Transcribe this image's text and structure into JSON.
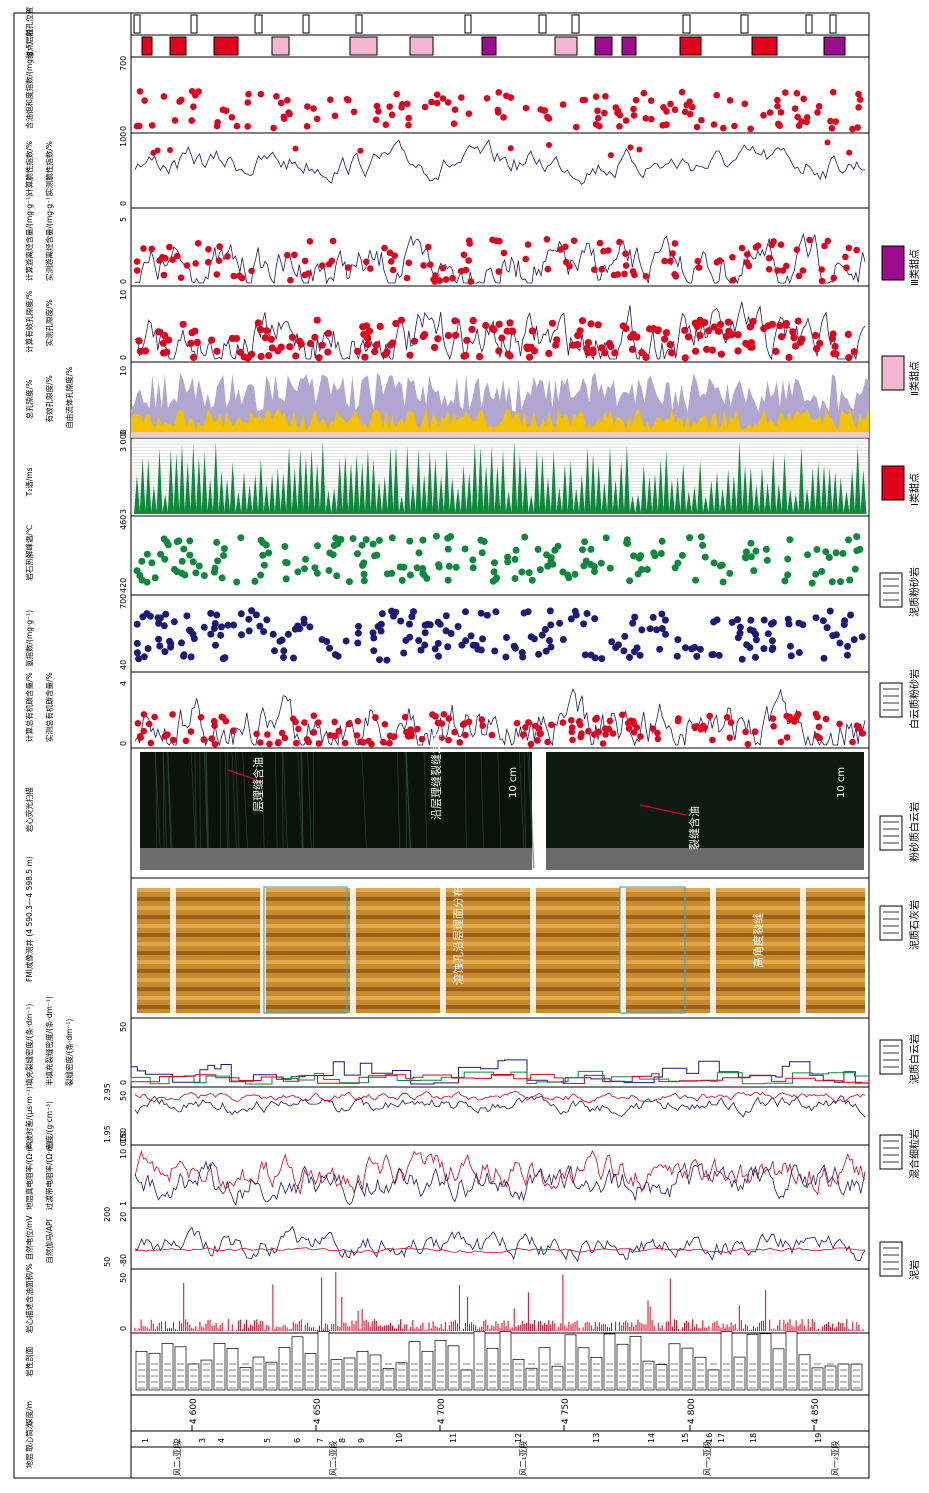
{
  "panel": {
    "track_labels": [
      "射孔位置",
      "甜点层段",
      "含油饱和度指数/(mg·g⁻¹)",
      "计算脆性指数/% · 实测脆性指数/%",
      "计算游离烃含量/(mg·g⁻¹) · 实测游离烃含量/(mg·g⁻¹)",
      "计算有效孔隙度/% · 实测孔隙度/%",
      "总孔隙度/% · 有效孔隙度/% · 自由流体孔隙度/%",
      "T₂谱/ms",
      "岩石热解峰温/℃",
      "氢指数/(mg·g⁻¹)",
      "计算总有机碳含量/% · 实测总有机碳含量/%",
      "岩心荧光扫描",
      "FMI成像测井 (4 590.3—4 598.5 m)",
      "填充裂缝密度/(条·dm⁻¹) · 半填充裂缝密度/(条·dm⁻¹) · 裂缝密度/(条·dm⁻¹)",
      "声波时差/(μs·m⁻¹) · 密度/(g·cm⁻³)",
      "地层真电阻率/(Ω·m) · 过渡带电阻率/(Ω·m)",
      "自然电位/mV · 自然伽马/API",
      "岩心描述含油面积/%",
      "岩性剖面",
      "深度/m",
      "取心筒次",
      "地层"
    ],
    "scales": [
      [
        "0",
        "700"
      ],
      [
        "0",
        "100"
      ],
      [
        "0",
        "5"
      ],
      [
        "0",
        "10"
      ],
      [
        "0",
        "10"
      ],
      [
        "3",
        "3 000"
      ],
      [
        "420",
        "460"
      ],
      [
        "40",
        "700"
      ],
      [
        "0",
        "4"
      ],
      [
        "0",
        "50"
      ],
      [
        "150",
        "50"
      ],
      [
        "1.95",
        "2.95"
      ],
      [
        "1",
        "10 000"
      ],
      [
        "-80",
        "20"
      ],
      [
        "50",
        "200"
      ],
      [
        "0",
        "50"
      ]
    ],
    "depth_ticks": [
      "4 600",
      "4 650",
      "4 700",
      "4 750",
      "4 800",
      "4 850"
    ],
    "core_runs": [
      "1",
      "2",
      "3",
      "4",
      "5",
      "6",
      "7",
      "8",
      "9",
      "10",
      "11",
      "12",
      "13",
      "14",
      "15",
      "16",
      "17",
      "18",
      "19"
    ],
    "strata": [
      "风二₃亚段",
      "风二₂亚段",
      "风二₁亚段",
      "风一₃亚段",
      "风一₂亚段"
    ],
    "annotations": {
      "bedding_fracture": "层理缝含油",
      "fracture_oil": "裂缝含油",
      "scale_bar": "10 cm",
      "dissolution": "溶蚀孔沿层理面分布",
      "high_angle": "高角度裂缝",
      "fluorescence_note": "沿层理缝裂缝发育"
    },
    "colors": {
      "red": "#e3001b",
      "navy": "#1b1a78",
      "green": "#0a8a3a",
      "purple": "#9b0b8e",
      "pink": "#f4b6d2",
      "lavender": "#b0a6d2",
      "gold": "#f2c200"
    }
  },
  "legend": {
    "sweet": [
      {
        "label": "Ⅰ类甜点",
        "color": "#e3001b"
      },
      {
        "label": "Ⅱ类甜点",
        "color": "#f4b6d2"
      },
      {
        "label": "Ⅲ类甜点",
        "color": "#9b0b8e"
      }
    ],
    "lithology": [
      {
        "label": "泥质粉砂岩",
        "icon": "silty-mudstone-icon"
      },
      {
        "label": "白云质粉砂岩",
        "icon": "dolomitic-siltstone-icon"
      },
      {
        "label": "粉砂质白云岩",
        "icon": "silty-dolomite-icon"
      },
      {
        "label": "泥质石灰岩",
        "icon": "argillaceous-limestone-icon"
      },
      {
        "label": "泥质白云岩",
        "icon": "argillaceous-dolomite-icon"
      },
      {
        "label": "混合细粒岩",
        "icon": "mixed-fine-rock-icon"
      },
      {
        "label": "泥岩",
        "icon": "mudstone-icon"
      }
    ]
  }
}
